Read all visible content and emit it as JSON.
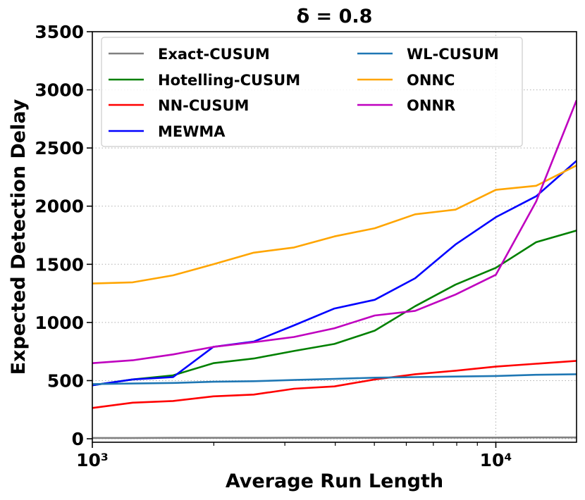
{
  "chart_data": {
    "type": "line",
    "title": "δ = 0.8",
    "xlabel": "Average Run Length",
    "ylabel": "Expected Detection Delay",
    "xscale": "log",
    "xlim": [
      1000,
      15850
    ],
    "ylim": [
      -30,
      3500
    ],
    "x_ticks": [
      {
        "value": 1000,
        "label": "10³"
      },
      {
        "value": 10000,
        "label": "10⁴"
      }
    ],
    "y_ticks": [
      0,
      500,
      1000,
      1500,
      2000,
      2500,
      3000,
      3500
    ],
    "grid": "dotted",
    "legend_position": "top",
    "x": [
      1000,
      1259,
      1585,
      1995,
      2512,
      3162,
      3981,
      5012,
      6310,
      7943,
      10000,
      12589,
      15849
    ],
    "series": [
      {
        "name": "Exact-CUSUM",
        "color": "#808080",
        "values": [
          7,
          7,
          8,
          8,
          8,
          9,
          9,
          9,
          10,
          10,
          10,
          11,
          11
        ]
      },
      {
        "name": "Hotelling-CUSUM",
        "color": "#008000",
        "values": [
          460,
          510,
          545,
          650,
          690,
          755,
          815,
          930,
          1140,
          1325,
          1470,
          1690,
          1790
        ]
      },
      {
        "name": "NN-CUSUM",
        "color": "#ff0000",
        "values": [
          265,
          310,
          325,
          365,
          380,
          430,
          450,
          510,
          555,
          585,
          620,
          645,
          670
        ]
      },
      {
        "name": "MEWMA",
        "color": "#0000ff",
        "values": [
          460,
          510,
          530,
          790,
          835,
          975,
          1120,
          1195,
          1380,
          1670,
          1905,
          2085,
          2390
        ]
      },
      {
        "name": "WL-CUSUM",
        "color": "#1f77b4",
        "values": [
          470,
          475,
          480,
          490,
          495,
          505,
          515,
          525,
          530,
          535,
          540,
          550,
          555
        ]
      },
      {
        "name": "ONNC",
        "color": "#ffa500",
        "values": [
          1335,
          1345,
          1405,
          1500,
          1600,
          1645,
          1740,
          1810,
          1930,
          1970,
          2140,
          2175,
          2350
        ]
      },
      {
        "name": "ONNR",
        "color": "#bf00bf",
        "values": [
          650,
          675,
          725,
          790,
          830,
          875,
          950,
          1060,
          1100,
          1240,
          1410,
          2040,
          2910
        ]
      }
    ]
  }
}
